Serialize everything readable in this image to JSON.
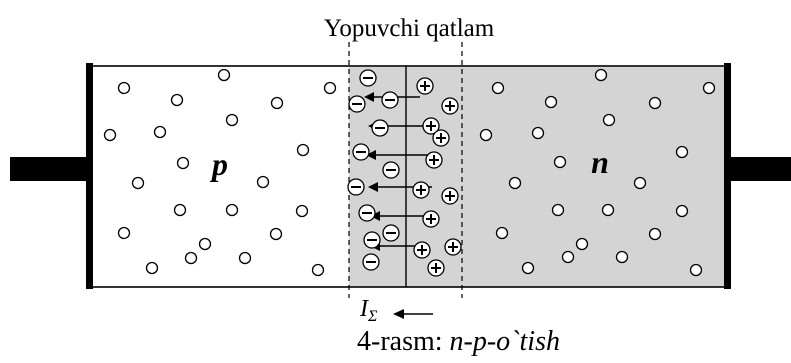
{
  "diagram": {
    "header_label": "Yopuvchi qatlam",
    "p_region_label": "p",
    "n_region_label": "n",
    "current_symbol": "I",
    "current_subscript": "Σ",
    "caption_prefix": "4-rasm: ",
    "caption_italic": "n-p-o`tish",
    "colors": {
      "outline": "#000000",
      "p_region_fill": "#ffffff",
      "junction_fill": "#d4d4d4",
      "n_region_fill": "#d4d4d4"
    },
    "icons": {
      "hole": "hollow-circle",
      "negative_ion": "circled-minus",
      "positive_ion": "circled-plus",
      "field_direction": "left-arrow"
    }
  }
}
